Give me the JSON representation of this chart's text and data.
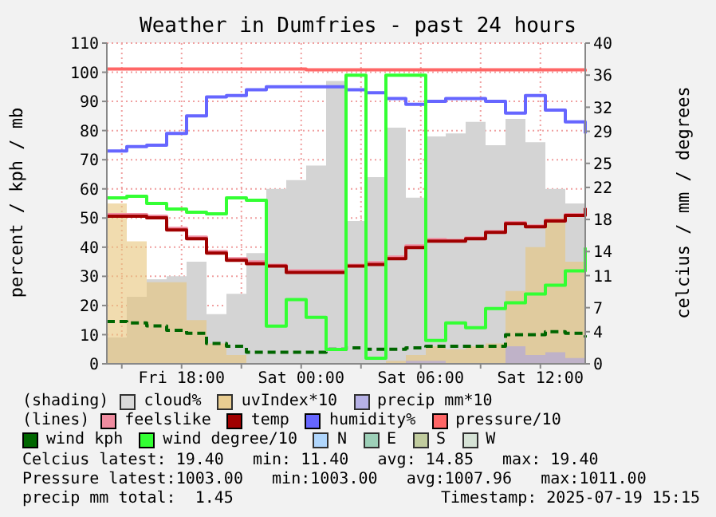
{
  "chart_data": {
    "type": "step",
    "title": "Weather in Dumfries - past 24 hours",
    "ylabel": "percent / kph / mb",
    "y2label": "celcius / mm / degrees",
    "x": [
      "2025-07-18T14:15",
      "2025-07-18T15:15",
      "2025-07-18T16:15",
      "2025-07-18T17:15",
      "2025-07-18T18:15",
      "2025-07-18T19:15",
      "2025-07-18T20:15",
      "2025-07-18T21:15",
      "2025-07-18T22:15",
      "2025-07-18T23:15",
      "2025-07-19T00:15",
      "2025-07-19T01:15",
      "2025-07-19T02:15",
      "2025-07-19T03:15",
      "2025-07-19T04:15",
      "2025-07-19T05:15",
      "2025-07-19T06:15",
      "2025-07-19T07:15",
      "2025-07-19T08:15",
      "2025-07-19T09:15",
      "2025-07-19T10:15",
      "2025-07-19T11:15",
      "2025-07-19T12:15",
      "2025-07-19T13:15",
      "2025-07-19T14:15"
    ],
    "xlim": [
      "2025-07-18T14:15",
      "2025-07-19T14:15"
    ],
    "xticks": [
      {
        "value": "2025-07-18T15:00",
        "label": null
      },
      {
        "value": "2025-07-18T18:00",
        "label": "Fri 18:00"
      },
      {
        "value": "2025-07-18T21:00",
        "label": null
      },
      {
        "value": "2025-07-19T00:00",
        "label": "Sat 00:00"
      },
      {
        "value": "2025-07-19T03:00",
        "label": null
      },
      {
        "value": "2025-07-19T06:00",
        "label": "Sat 06:00"
      },
      {
        "value": "2025-07-19T09:00",
        "label": null
      },
      {
        "value": "2025-07-19T12:00",
        "label": "Sat 12:00"
      }
    ],
    "ylim": [
      0,
      110
    ],
    "yticks": [
      0,
      10,
      20,
      30,
      40,
      50,
      60,
      70,
      80,
      90,
      100,
      110
    ],
    "y2lim": [
      0,
      40
    ],
    "y2ticks": [
      0,
      4,
      7,
      11,
      14,
      18,
      22,
      25,
      29,
      32,
      36,
      40
    ],
    "grid": true,
    "legend": "bottom",
    "marker": "none",
    "series": [
      {
        "name": "cloud%",
        "type": "area",
        "color": "#d4d4d4",
        "values": [
          9,
          23,
          29,
          30,
          35,
          17,
          24,
          38,
          60,
          63,
          68,
          97,
          49,
          64,
          81,
          57,
          78,
          79,
          83,
          75,
          84,
          76,
          60,
          55,
          88
        ]
      },
      {
        "name": "uvIndex*10",
        "type": "area",
        "color": "#e8c47a",
        "values": [
          55,
          42,
          28,
          28,
          15,
          7,
          3,
          0,
          0,
          0,
          0,
          0,
          0,
          0,
          1,
          3,
          6,
          5,
          6,
          7,
          25,
          40,
          50,
          35,
          35
        ]
      },
      {
        "name": "precip mm*10",
        "type": "area",
        "color": "#a8a2e4",
        "values": [
          0,
          0,
          0,
          0,
          0,
          0,
          0,
          0,
          0,
          0,
          0,
          0,
          0,
          0,
          0,
          1,
          1,
          0,
          0,
          0,
          6,
          3,
          4,
          2,
          1
        ]
      },
      {
        "name": "feelslike",
        "axis": "y2",
        "color": "#f08ca0",
        "values": [
          18.6,
          18.6,
          18.4,
          16.9,
          15.8,
          14.0,
          13.1,
          12.7,
          12.3,
          11.6,
          11.6,
          11.6,
          12.3,
          12.6,
          13.3,
          14.7,
          15.5,
          15.4,
          15.7,
          16.5,
          17.6,
          17.2,
          17.9,
          18.6,
          19.5
        ]
      },
      {
        "name": "temp",
        "axis": "y2",
        "color": "#a00000",
        "values": [
          18.4,
          18.4,
          18.2,
          16.7,
          15.6,
          13.8,
          12.9,
          12.5,
          12.2,
          11.4,
          11.4,
          11.4,
          12.2,
          12.4,
          13.1,
          14.5,
          15.3,
          15.3,
          15.6,
          16.4,
          17.5,
          17.1,
          17.8,
          18.5,
          19.4
        ]
      },
      {
        "name": "humidity%",
        "color": "#6666ff",
        "values": [
          73,
          74.5,
          75,
          79,
          85,
          91.5,
          92,
          94,
          95,
          95,
          95,
          95,
          94,
          93,
          91,
          89,
          90,
          91,
          91,
          90,
          86,
          92,
          87,
          83,
          79
        ]
      },
      {
        "name": "pressure/10",
        "color": "#ff6666",
        "values": [
          101.1,
          101.1,
          101.1,
          101.1,
          101.1,
          101.1,
          101.1,
          101.1,
          101.1,
          101.1,
          100.8,
          100.8,
          100.8,
          100.8,
          100.8,
          100.8,
          100.8,
          100.8,
          100.8,
          100.8,
          100.8,
          100.8,
          100.8,
          100.8,
          100.3
        ]
      },
      {
        "name": "wind kph",
        "color": "#006600",
        "line_style": "dashed",
        "values": [
          14.5,
          14,
          13,
          11.5,
          10.5,
          7,
          6,
          4,
          4,
          4,
          4,
          5,
          5.5,
          5,
          5,
          5.5,
          6,
          6,
          6,
          6,
          10,
          10,
          11,
          10.5,
          9
        ]
      },
      {
        "name": "wind degree/10",
        "axis": "y2",
        "color": "#33ff33",
        "values": [
          20.7,
          20.9,
          20.0,
          19.3,
          18.9,
          18.7,
          20.7,
          20.4,
          4.7,
          8.0,
          5.8,
          1.8,
          36.0,
          0.7,
          36.0,
          36.0,
          2.9,
          5.1,
          4.5,
          6.9,
          7.6,
          8.7,
          9.8,
          11.6,
          14.5
        ]
      },
      {
        "name": "N",
        "type": "area",
        "color": "#a0d0ff",
        "values": [
          null,
          null,
          null,
          null,
          null,
          null,
          null,
          null,
          null,
          null,
          null,
          null,
          null,
          null,
          null,
          null,
          null,
          null,
          null,
          null,
          null,
          null,
          null,
          null,
          null
        ]
      },
      {
        "name": "E",
        "type": "area",
        "color": "#88c8aa",
        "values": [
          null,
          null,
          null,
          null,
          null,
          null,
          null,
          null,
          null,
          null,
          null,
          null,
          null,
          null,
          null,
          null,
          null,
          null,
          null,
          null,
          null,
          null,
          null,
          null,
          null
        ]
      },
      {
        "name": "S",
        "type": "area",
        "color": "#b6c38a",
        "values": [
          null,
          null,
          null,
          null,
          null,
          null,
          null,
          null,
          null,
          null,
          null,
          null,
          null,
          null,
          null,
          null,
          null,
          null,
          null,
          null,
          null,
          null,
          null,
          null,
          null
        ]
      },
      {
        "name": "W",
        "type": "area",
        "color": "#d0e0d0",
        "values": [
          null,
          null,
          null,
          null,
          null,
          null,
          null,
          null,
          null,
          null,
          null,
          null,
          null,
          null,
          null,
          null,
          null,
          null,
          null,
          null,
          null,
          null,
          null,
          null,
          null
        ]
      }
    ],
    "annotations": [
      "(shading)",
      "(lines)",
      "Celcius latest: 19.40   min: 11.40   avg: 14.85   max: 19.40",
      "Pressure latest:1003.00   min:1003.00   avg:1007.96   max:1011.00",
      "precip mm total:  1.45",
      "Timestamp: 2025-07-19 15:15"
    ]
  }
}
